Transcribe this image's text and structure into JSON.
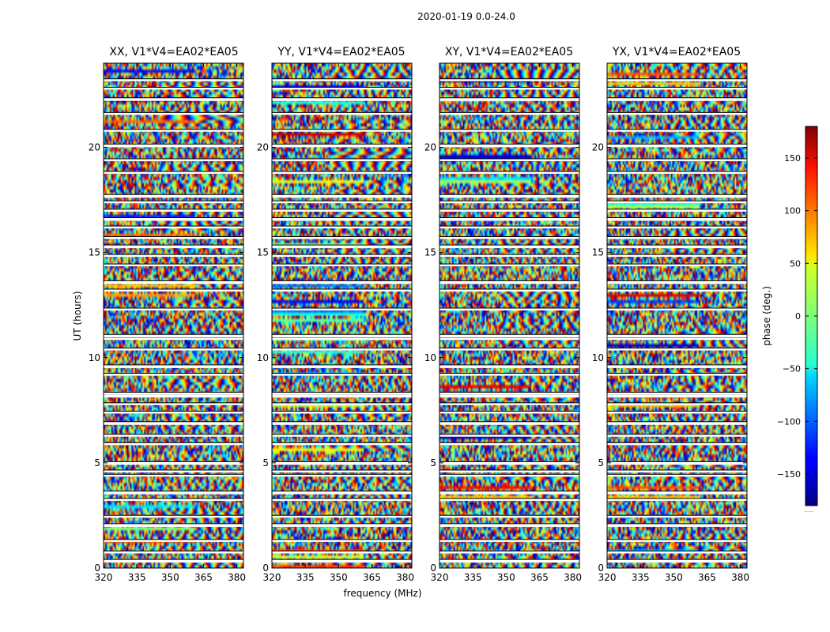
{
  "suptitle": "2020-01-19 0.0-24.0",
  "xlabel": "frequency (MHz)",
  "ylabel": "UT (hours)",
  "colorbar": {
    "label": "phase (deg.)",
    "range": [
      -180,
      180
    ],
    "ticks": [
      -150,
      -100,
      -50,
      0,
      50,
      100,
      150
    ],
    "tick_labels": [
      "−150",
      "−100",
      "−50",
      "0",
      "50",
      "100",
      "150"
    ],
    "colormap": "jet",
    "footnote": "....."
  },
  "chart_data": [
    {
      "type": "heatmap",
      "title": "XX, V1*V4=EA02*EA05",
      "xlabel": "frequency (MHz)",
      "ylabel": "UT (hours)",
      "xlim": [
        320,
        383
      ],
      "ylim": [
        0,
        24
      ],
      "xticks": [
        320,
        335,
        350,
        365,
        380
      ],
      "yticks": [
        0,
        5,
        10,
        15,
        20
      ],
      "value": "phase (deg.)"
    },
    {
      "type": "heatmap",
      "title": "YY, V1*V4=EA02*EA05",
      "xlabel": "frequency (MHz)",
      "ylabel": "",
      "xlim": [
        320,
        383
      ],
      "ylim": [
        0,
        24
      ],
      "xticks": [
        320,
        335,
        350,
        365,
        380
      ],
      "yticks": [
        0,
        5,
        10,
        15,
        20
      ],
      "value": "phase (deg.)"
    },
    {
      "type": "heatmap",
      "title": "XY, V1*V4=EA02*EA05",
      "xlabel": "frequency (MHz)",
      "ylabel": "",
      "xlim": [
        320,
        383
      ],
      "ylim": [
        0,
        24
      ],
      "xticks": [
        320,
        335,
        350,
        365,
        380
      ],
      "yticks": [
        0,
        5,
        10,
        15,
        20
      ],
      "value": "phase (deg.)"
    },
    {
      "type": "heatmap",
      "title": "YX, V1*V4=EA02*EA05",
      "xlabel": "frequency (MHz)",
      "ylabel": "",
      "xlim": [
        320,
        383
      ],
      "ylim": [
        0,
        24
      ],
      "xticks": [
        320,
        335,
        350,
        365,
        380
      ],
      "yticks": [
        0,
        5,
        10,
        15,
        20
      ],
      "value": "phase (deg.)"
    }
  ],
  "data_gaps_ut_hours": [
    0.35,
    0.75,
    1.3,
    2.05,
    2.45,
    3.25,
    3.6,
    4.4,
    4.6,
    5.0,
    5.9,
    6.3,
    6.9,
    7.4,
    7.8,
    8.2,
    8.3,
    9.2,
    9.6,
    10.4,
    10.9,
    11.05,
    12.3,
    13.2,
    13.6,
    14.4,
    14.85,
    15.3,
    15.7,
    16.2,
    16.6,
    17.0,
    17.4,
    17.7,
    18.8,
    19.4,
    20.1,
    20.8,
    21.6,
    22.3,
    22.8,
    23.2
  ]
}
